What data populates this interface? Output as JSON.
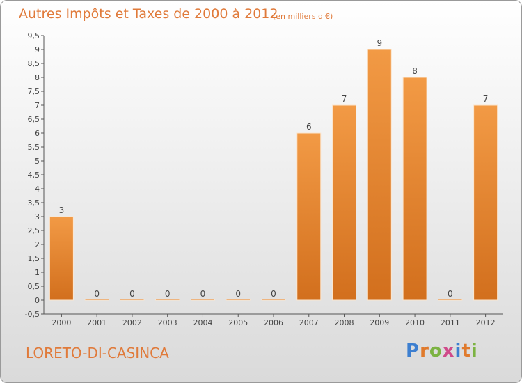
{
  "header": {
    "title": "Autres Impôts et Taxes de 2000 à 2012",
    "unit": "(en milliers d'€)"
  },
  "footer": {
    "commune": "LORETO-DI-CASINCA",
    "brand": "Proxiti"
  },
  "chart_data": {
    "type": "bar",
    "categories": [
      "2000",
      "2001",
      "2002",
      "2003",
      "2004",
      "2005",
      "2006",
      "2007",
      "2008",
      "2009",
      "2010",
      "2011",
      "2012"
    ],
    "values": [
      3,
      0,
      0,
      0,
      0,
      0,
      0,
      6,
      7,
      9,
      8,
      0,
      7
    ],
    "value_labels": [
      "3",
      "0",
      "0",
      "0",
      "0",
      "0",
      "0",
      "6",
      "7",
      "9",
      "8",
      "0",
      "7"
    ],
    "title": "Autres Impôts et Taxes de 2000 à 2012",
    "xlabel": "",
    "ylabel": "",
    "ylim": [
      -0.5,
      9.5
    ],
    "yticks": [
      -0.5,
      0,
      0.5,
      1,
      1.5,
      2,
      2.5,
      3,
      3.5,
      4,
      4.5,
      5,
      5.5,
      6,
      6.5,
      7,
      7.5,
      8,
      8.5,
      9,
      9.5
    ],
    "ytick_labels": [
      "-0,5",
      "0",
      "0,5",
      "1",
      "1,5",
      "2",
      "2,5",
      "3",
      "3,5",
      "4",
      "4,5",
      "5",
      "5,5",
      "6",
      "6,5",
      "7",
      "7,5",
      "8",
      "8,5",
      "9",
      "9,5"
    ],
    "grid": false,
    "bar_color": "#f29a45",
    "bar_color_dark": "#d26f1d"
  }
}
